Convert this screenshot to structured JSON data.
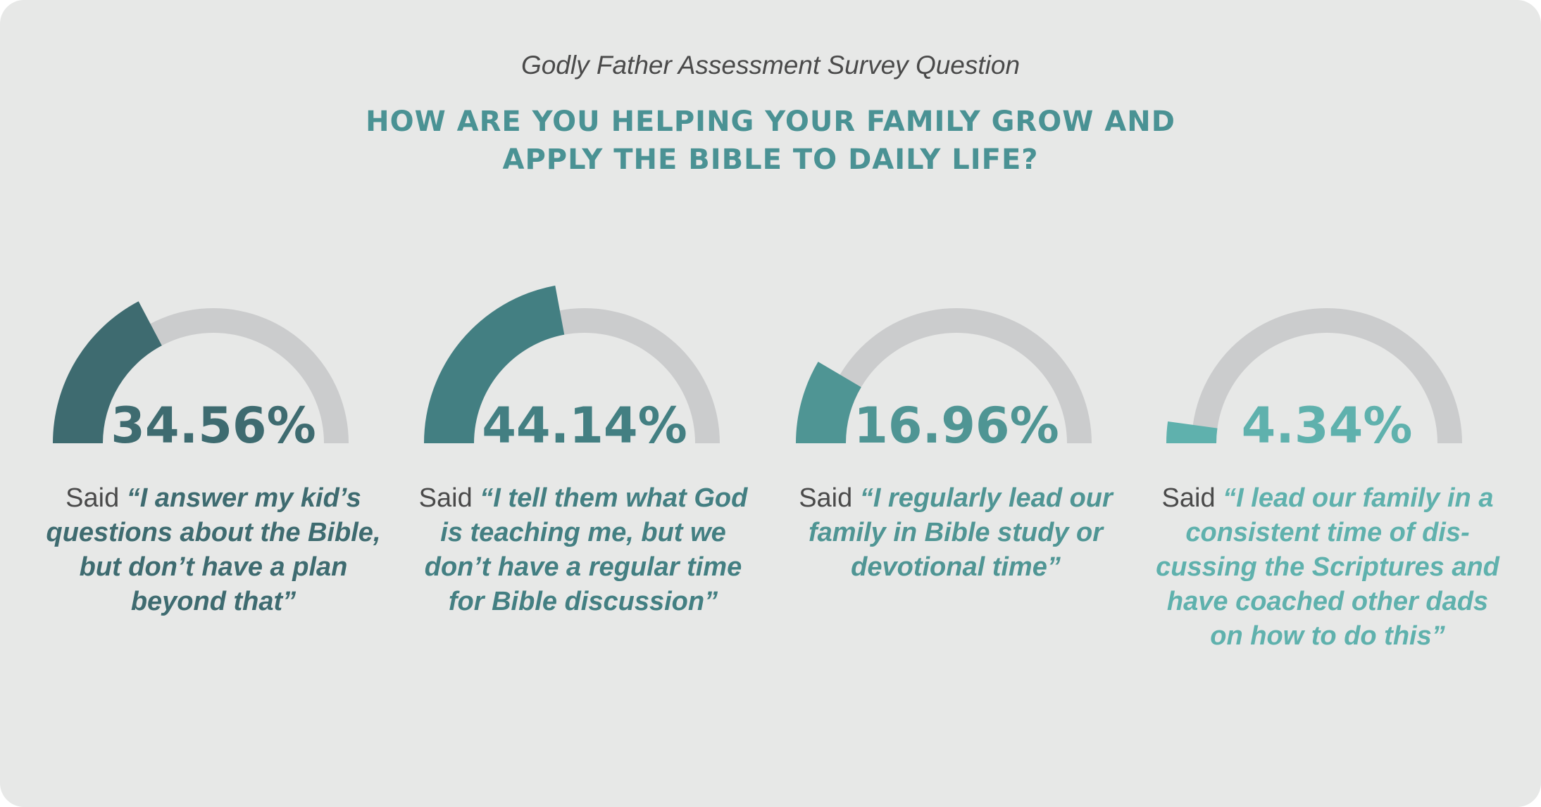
{
  "header": {
    "subtitle": "Godly Father Assessment Survey Question",
    "title_line1": "HOW ARE YOU HELPING YOUR FAMILY GROW AND",
    "title_line2": "APPLY THE BIBLE TO DAILY LIFE?"
  },
  "colors": {
    "track": "#cbcccd",
    "background": "#e7e8e7",
    "said_text": "#4a4a4a"
  },
  "chart_data": {
    "type": "gauge",
    "unit": "%",
    "max": 100,
    "items": [
      {
        "value": 34.56,
        "label": "34.56%",
        "said": "Said",
        "quote": "“I answer my kid’s questions about the Bible, but don’t have a plan beyond that”",
        "color": "#3e6b70"
      },
      {
        "value": 44.14,
        "label": "44.14%",
        "said": "Said",
        "quote": "“I tell them what God is teaching me, but we don’t have a regular time for Bible discussion”",
        "color": "#437f82"
      },
      {
        "value": 16.96,
        "label": "16.96%",
        "said": "Said",
        "quote": "“I regularly lead our family in Bible study or devotional time”",
        "color": "#4f9594"
      },
      {
        "value": 4.34,
        "label": "4.34%",
        "said": "Said",
        "quote": "“I lead our family in a consistent time of dis-cussing the Scriptures and have coached other dads on how to do this”",
        "color": "#5fb1ad"
      }
    ]
  }
}
